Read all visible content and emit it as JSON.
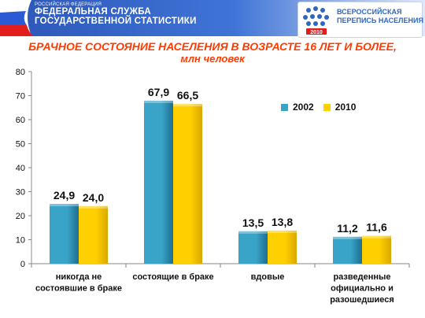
{
  "header": {
    "agency_small": "РОССИЙСКАЯ ФЕДЕРАЦИЯ",
    "agency_line1": "ФЕДЕРАЛЬНАЯ СЛУЖБА",
    "agency_line2": "ГОСУДАРСТВЕННОЙ СТАТИСТИКИ",
    "census_line1": "ВСЕРОССИЙСКАЯ",
    "census_line2": "ПЕРЕПИСЬ НАСЕЛЕНИЯ",
    "census_year": "2010"
  },
  "colors": {
    "s2002": "#3aa3c8",
    "s2010": "#ffd000",
    "title": "#ff3b00"
  },
  "chart_data": {
    "type": "bar",
    "title": "БРАЧНОЕ СОСТОЯНИЕ НАСЕЛЕНИЯ В ВОЗРАСТЕ 16 ЛЕТ И БОЛЕЕ,",
    "subtitle": "млн человек",
    "categories": [
      [
        "никогда не",
        "состоявшие в браке"
      ],
      [
        "состоящие в браке"
      ],
      [
        "вдовые"
      ],
      [
        "разведенные",
        "официально и",
        "разошедшиеся"
      ]
    ],
    "series": [
      {
        "name": "2002",
        "values": [
          24.9,
          67.9,
          13.5,
          11.2
        ],
        "labels": [
          "24,9",
          "67,9",
          "13,5",
          "11,2"
        ]
      },
      {
        "name": "2010",
        "values": [
          24.0,
          66.5,
          13.8,
          11.6
        ],
        "labels": [
          "24,0",
          "66,5",
          "13,8",
          "11,6"
        ]
      }
    ],
    "ylim": [
      0,
      80
    ],
    "yticks": [
      0,
      10,
      20,
      30,
      40,
      50,
      60,
      70,
      80
    ],
    "legend": "top-right",
    "grid": false
  }
}
